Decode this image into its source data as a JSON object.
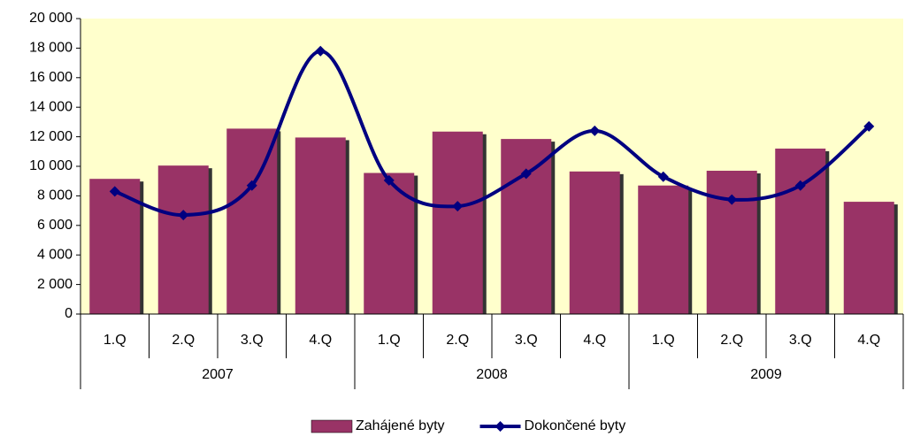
{
  "chart_data": {
    "type": "bar",
    "categories": [
      "1.Q",
      "2.Q",
      "3.Q",
      "4.Q",
      "1.Q",
      "2.Q",
      "3.Q",
      "4.Q",
      "1.Q",
      "2.Q",
      "3.Q",
      "4.Q"
    ],
    "groups": [
      "2007",
      "2008",
      "2009"
    ],
    "series": [
      {
        "name": "Zahájené byty",
        "type": "bar",
        "color": "#993366",
        "values": [
          9150,
          10050,
          12550,
          11950,
          9550,
          12350,
          11850,
          9650,
          8700,
          9700,
          11200,
          7600
        ]
      },
      {
        "name": "Dokončené byty",
        "type": "line",
        "color": "#000080",
        "values": [
          8300,
          6700,
          8700,
          17800,
          9050,
          7300,
          9500,
          12400,
          9300,
          7750,
          8700,
          12700
        ]
      }
    ],
    "ylim": [
      0,
      20000
    ],
    "yticks": [
      0,
      {
        "value": 2000,
        "label": "2 000"
      },
      {
        "value": 4000,
        "label": "4 000"
      },
      {
        "value": 6000,
        "label": "6 000"
      },
      {
        "value": 8000,
        "label": "8 000"
      },
      {
        "value": 10000,
        "label": "10 000"
      },
      {
        "value": 12000,
        "label": "12 000"
      },
      {
        "value": 14000,
        "label": "14 000"
      },
      {
        "value": 16000,
        "label": "16 000"
      },
      {
        "value": 18000,
        "label": "18 000"
      },
      {
        "value": 20000,
        "label": "20 000"
      }
    ],
    "plot_background": "#ffffcc",
    "legend": "bottom"
  }
}
